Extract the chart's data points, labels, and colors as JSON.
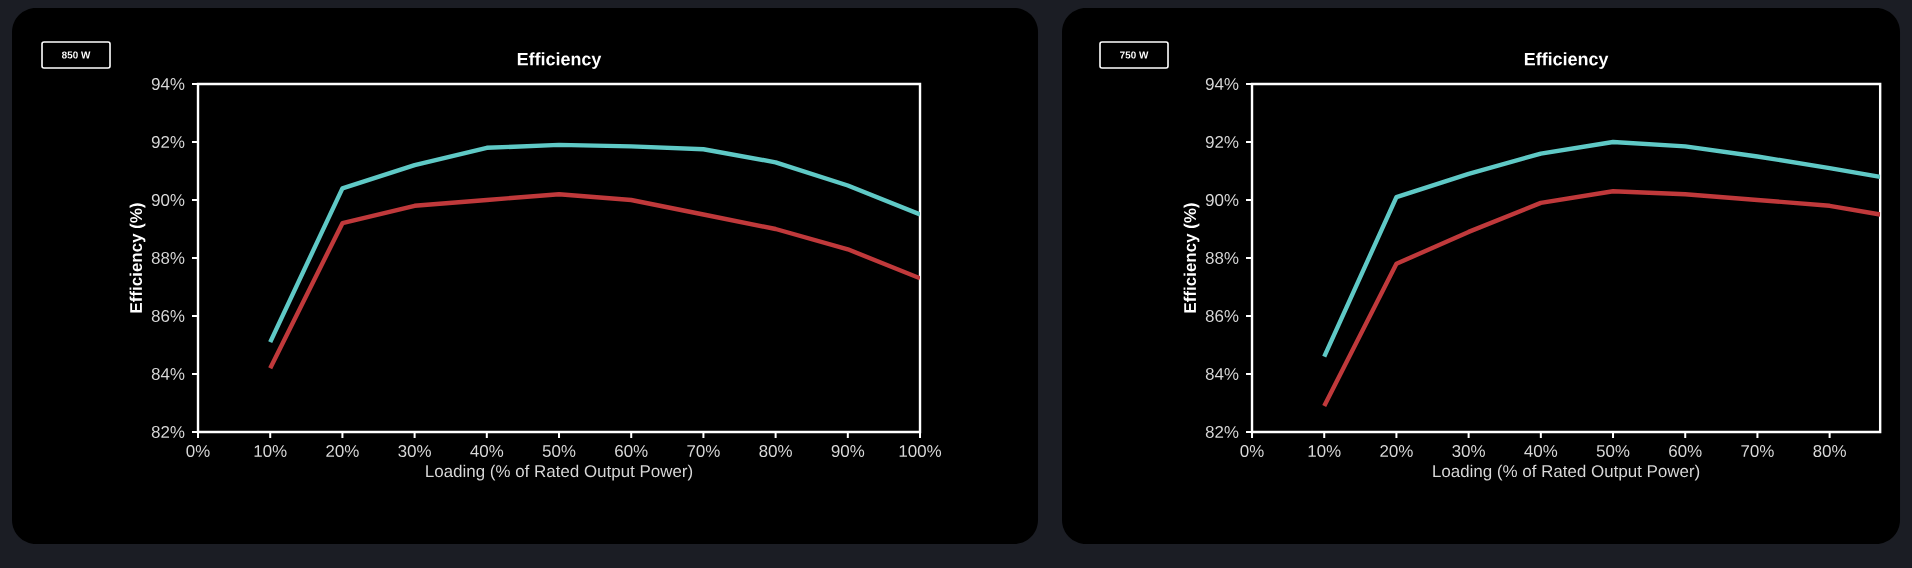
{
  "chart_data": [
    {
      "type": "line",
      "title": "Efficiency",
      "xlabel": "Loading (% of Rated Output Power)",
      "ylabel": "Efficiency (%)",
      "annotations": [
        "850 W"
      ],
      "xlim": [
        0,
        100
      ],
      "ylim": [
        82,
        94
      ],
      "xticks": [
        {
          "value": 0,
          "label": "0%"
        },
        {
          "value": 10,
          "label": "10%"
        },
        {
          "value": 20,
          "label": "20%"
        },
        {
          "value": 30,
          "label": "30%"
        },
        {
          "value": 40,
          "label": "40%"
        },
        {
          "value": 50,
          "label": "50%"
        },
        {
          "value": 60,
          "label": "60%"
        },
        {
          "value": 70,
          "label": "70%"
        },
        {
          "value": 80,
          "label": "80%"
        },
        {
          "value": 90,
          "label": "90%"
        },
        {
          "value": 100,
          "label": "100%"
        }
      ],
      "yticks": [
        {
          "value": 82,
          "label": "82%"
        },
        {
          "value": 84,
          "label": "84%"
        },
        {
          "value": 86,
          "label": "86%"
        },
        {
          "value": 88,
          "label": "88%"
        },
        {
          "value": 90,
          "label": "90%"
        },
        {
          "value": 92,
          "label": "92%"
        },
        {
          "value": 94,
          "label": "94%"
        }
      ],
      "x": [
        10,
        20,
        30,
        40,
        50,
        60,
        70,
        80,
        90,
        100
      ],
      "series": [
        {
          "color": "#5fc9c6",
          "values": [
            85.1,
            90.4,
            91.2,
            91.8,
            91.9,
            91.85,
            91.75,
            91.3,
            90.5,
            89.5
          ]
        },
        {
          "color": "#c0393b",
          "values": [
            84.2,
            89.2,
            89.8,
            90.0,
            90.2,
            90.0,
            89.5,
            89.0,
            88.3,
            87.3
          ]
        }
      ],
      "grid": false,
      "marker": "none",
      "line_style": "solid"
    },
    {
      "type": "line",
      "title": "Efficiency",
      "xlabel": "Loading (% of Rated Output Power)",
      "ylabel": "Efficiency (%)",
      "annotations": [
        "750 W"
      ],
      "xlim": [
        0,
        87
      ],
      "ylim": [
        82,
        94
      ],
      "xticks": [
        {
          "value": 0,
          "label": "0%"
        },
        {
          "value": 10,
          "label": "10%"
        },
        {
          "value": 20,
          "label": "20%"
        },
        {
          "value": 30,
          "label": "30%"
        },
        {
          "value": 40,
          "label": "40%"
        },
        {
          "value": 50,
          "label": "50%"
        },
        {
          "value": 60,
          "label": "60%"
        },
        {
          "value": 70,
          "label": "70%"
        },
        {
          "value": 80,
          "label": "80%"
        }
      ],
      "yticks": [
        {
          "value": 82,
          "label": "82%"
        },
        {
          "value": 84,
          "label": "84%"
        },
        {
          "value": 86,
          "label": "86%"
        },
        {
          "value": 88,
          "label": "88%"
        },
        {
          "value": 90,
          "label": "90%"
        },
        {
          "value": 92,
          "label": "92%"
        },
        {
          "value": 94,
          "label": "94%"
        }
      ],
      "x": [
        10,
        20,
        30,
        40,
        50,
        60,
        70,
        80,
        87
      ],
      "series": [
        {
          "color": "#5fc9c6",
          "values": [
            84.6,
            90.1,
            90.9,
            91.6,
            92.0,
            91.85,
            91.5,
            91.1,
            90.8
          ]
        },
        {
          "color": "#c0393b",
          "values": [
            82.9,
            87.8,
            88.9,
            89.9,
            90.3,
            90.2,
            90.0,
            89.8,
            89.5
          ]
        }
      ],
      "grid": false,
      "marker": "none",
      "line_style": "solid"
    }
  ]
}
